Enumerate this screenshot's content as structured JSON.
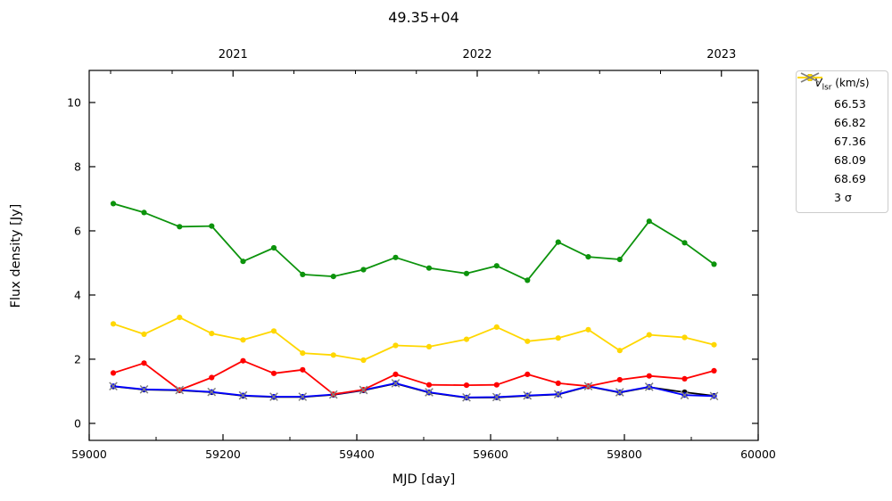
{
  "figure": {
    "title": "49.35+04",
    "xlabel": "MJD [day]",
    "ylabel": "Flux density [Jy]"
  },
  "legend": {
    "title_main": "V",
    "title_sub": "lsr",
    "title_rest": " (km/s)",
    "sigma_label": "3 σ",
    "sigma_color": "#808080"
  },
  "chart_data": {
    "type": "line",
    "title": "49.35+04",
    "xlabel": "MJD [day]",
    "ylabel": "Flux density [Jy]",
    "xlim": [
      59000,
      60000
    ],
    "ylim": [
      -0.53,
      11.0
    ],
    "grid": false,
    "legend_position": "outside-top-right",
    "x_major_ticks": [
      59000,
      59200,
      59400,
      59600,
      59800,
      60000
    ],
    "x_minor_ticks": [
      59100,
      59300,
      59500,
      59700,
      59900
    ],
    "y_major_ticks": [
      0,
      2,
      4,
      6,
      8,
      10
    ],
    "top_axis_year_ticks": [
      {
        "mjd": 59215,
        "label": "2021"
      },
      {
        "mjd": 59580,
        "label": "2022"
      },
      {
        "mjd": 59945,
        "label": "2023"
      }
    ],
    "top_axis_minor_ticks": [
      59032,
      59124,
      59306,
      59398,
      59489,
      59672,
      59763,
      59854
    ],
    "x": [
      59036,
      59082,
      59135,
      59183,
      59230,
      59276,
      59319,
      59365,
      59410,
      59458,
      59508,
      59564,
      59609,
      59655,
      59701,
      59746,
      59793,
      59837,
      59890,
      59934
    ],
    "series": [
      {
        "name": "66.53",
        "color": "#000000",
        "values": [
          1.15,
          1.05,
          1.03,
          0.97,
          0.86,
          0.82,
          0.82,
          0.89,
          1.03,
          1.24,
          0.96,
          0.8,
          0.81,
          0.86,
          0.9,
          1.15,
          0.96,
          1.13,
          0.97,
          0.86
        ]
      },
      {
        "name": "66.82",
        "color": "#0000ff",
        "values": [
          1.16,
          1.06,
          1.04,
          0.98,
          0.87,
          0.83,
          0.83,
          0.9,
          1.04,
          1.25,
          0.97,
          0.81,
          0.82,
          0.87,
          0.91,
          1.16,
          0.97,
          1.14,
          0.88,
          0.85
        ]
      },
      {
        "name": "67.36",
        "color": "#ff0000",
        "values": [
          1.57,
          1.88,
          1.04,
          1.43,
          1.95,
          1.56,
          1.67,
          0.91,
          1.05,
          1.53,
          1.2,
          1.19,
          1.2,
          1.53,
          1.25,
          1.16,
          1.36,
          1.48,
          1.39,
          1.64
        ]
      },
      {
        "name": "68.09",
        "color": "#0c930c",
        "values": [
          6.85,
          6.57,
          6.13,
          6.15,
          5.05,
          5.47,
          4.64,
          4.58,
          4.79,
          5.17,
          4.84,
          4.67,
          4.91,
          4.46,
          5.65,
          5.19,
          5.11,
          6.3,
          5.63,
          4.96
        ]
      },
      {
        "name": "68.69",
        "color": "#ffd700",
        "values": [
          3.1,
          2.78,
          3.3,
          2.8,
          2.6,
          2.88,
          2.19,
          2.13,
          1.97,
          2.43,
          2.39,
          2.62,
          3.0,
          2.56,
          2.66,
          2.92,
          2.27,
          2.76,
          2.68,
          2.45
        ]
      }
    ],
    "sigma_markers": {
      "name": "3 σ",
      "color": "#808080",
      "marker": "x",
      "values": [
        1.16,
        1.06,
        1.04,
        0.98,
        0.87,
        0.83,
        0.83,
        0.9,
        1.04,
        1.25,
        0.97,
        0.81,
        0.82,
        0.87,
        0.91,
        1.16,
        0.97,
        1.14,
        0.88,
        0.85
      ]
    }
  }
}
